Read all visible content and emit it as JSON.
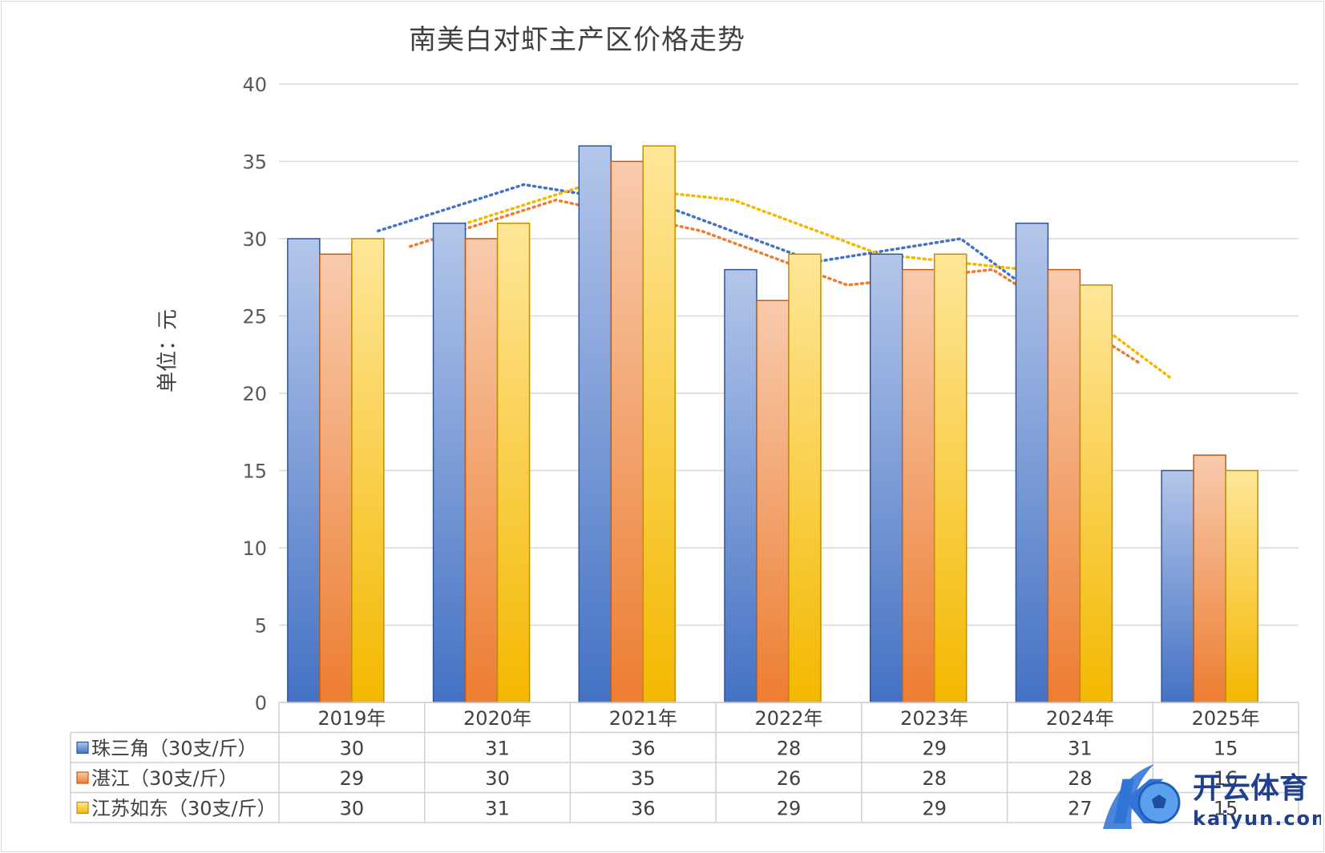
{
  "chart_data": {
    "type": "bar",
    "title": "南美白对虾主产区价格走势",
    "xlabel": "",
    "ylabel": "单位：元",
    "ylim": [
      0,
      40
    ],
    "yticks": [
      0,
      5,
      10,
      15,
      20,
      25,
      30,
      35,
      40
    ],
    "grid": true,
    "legend": "data-table",
    "categories": [
      "2019年",
      "2020年",
      "2021年",
      "2022年",
      "2023年",
      "2024年",
      "2025年"
    ],
    "series": [
      {
        "name": "珠三角（30支/斤）",
        "values": [
          30,
          31,
          36,
          28,
          29,
          31,
          15
        ],
        "color": "#4472c4",
        "light": "#b4c6ea",
        "border": "#2f5597",
        "trend": [
          30.5,
          33.5,
          32,
          28.5,
          30,
          23
        ]
      },
      {
        "name": "湛江（30支/斤）",
        "values": [
          29,
          30,
          35,
          26,
          28,
          28,
          16
        ],
        "color": "#ed7d31",
        "light": "#f8cbad",
        "border": "#c55a11",
        "trend": [
          29.5,
          32.5,
          30.5,
          27,
          28,
          22
        ]
      },
      {
        "name": "江苏如东（30支/斤）",
        "values": [
          30,
          31,
          36,
          29,
          29,
          27,
          15
        ],
        "color": "#f4b800",
        "light": "#ffe699",
        "border": "#bf9000",
        "trend": [
          30.5,
          33.5,
          32.5,
          29,
          28,
          21
        ]
      }
    ]
  },
  "watermark": {
    "brand": "开云体育",
    "domain": "kaiyun.com",
    "logo_letter": "K"
  }
}
